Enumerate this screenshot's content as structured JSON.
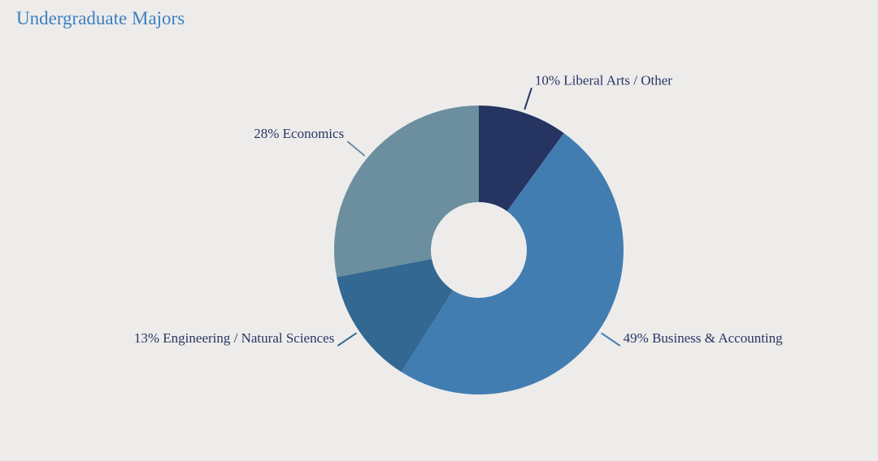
{
  "chart_data": {
    "type": "pie",
    "title": "Undergraduate Majors",
    "donut": true,
    "slices": [
      {
        "label": "10% Liberal Arts / Other",
        "value": 10,
        "color": "#263461"
      },
      {
        "label": "49% Business & Accounting",
        "value": 49,
        "color": "#427db1"
      },
      {
        "label": "13% Engineering / Natural Sciences",
        "value": 13,
        "color": "#326891"
      },
      {
        "label": "28% Economics",
        "value": 28,
        "color": "#6b8f9e"
      }
    ]
  },
  "colors": {
    "background": "#edeceb",
    "title": "#3d7fbf",
    "label_text": "#2a3563"
  }
}
